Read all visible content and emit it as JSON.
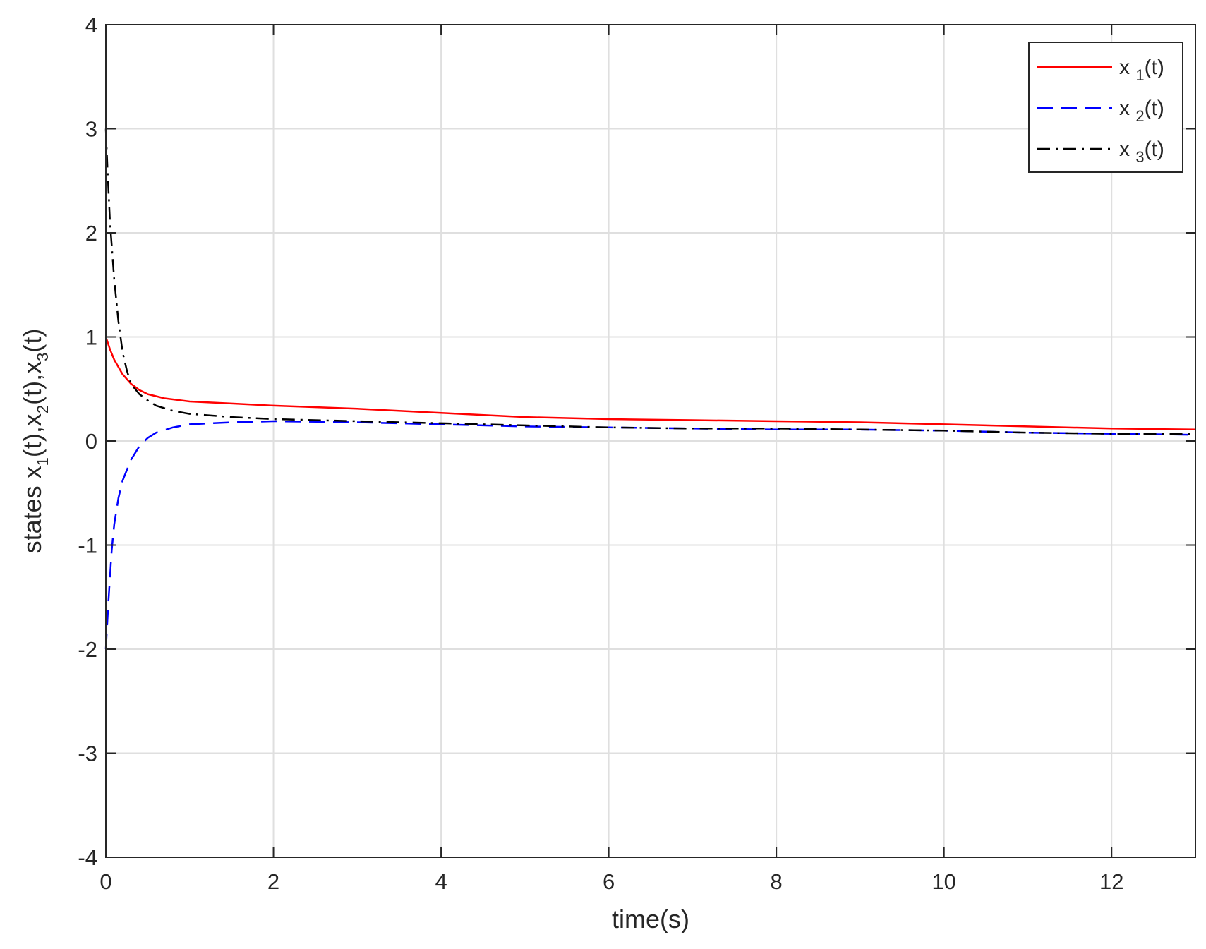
{
  "chart_data": {
    "type": "line",
    "title": "",
    "xlabel": "time(s)",
    "ylabel": {
      "parts": [
        "states x",
        "1",
        "(t),x",
        "2",
        "(t),x",
        "3",
        "(t)"
      ]
    },
    "xlim": [
      0,
      13
    ],
    "ylim": [
      -4,
      4
    ],
    "xticks": [
      0,
      2,
      4,
      6,
      8,
      10,
      12
    ],
    "yticks": [
      -4,
      -3,
      -2,
      -1,
      0,
      1,
      2,
      3,
      4
    ],
    "grid": true,
    "legend_position": "top-right",
    "series": [
      {
        "name": "x1(t)",
        "label_base": "x",
        "label_sub": "1",
        "label_tail": "(t)",
        "color": "#ff0000",
        "dash": "solid",
        "x": [
          0,
          0.05,
          0.1,
          0.2,
          0.3,
          0.4,
          0.5,
          0.7,
          1.0,
          1.5,
          2.0,
          3.0,
          4.0,
          5.0,
          6.0,
          7.0,
          8.0,
          9.0,
          10.0,
          11.0,
          12.0,
          13.0
        ],
        "y": [
          1.0,
          0.88,
          0.78,
          0.64,
          0.55,
          0.49,
          0.45,
          0.41,
          0.38,
          0.36,
          0.34,
          0.31,
          0.27,
          0.23,
          0.21,
          0.2,
          0.19,
          0.18,
          0.16,
          0.14,
          0.12,
          0.11
        ]
      },
      {
        "name": "x2(t)",
        "label_base": "x",
        "label_sub": "2",
        "label_tail": "(t)",
        "color": "#0000ff",
        "dash": "dashed",
        "x": [
          0,
          0.03,
          0.07,
          0.1,
          0.15,
          0.2,
          0.3,
          0.4,
          0.5,
          0.6,
          0.8,
          1.0,
          1.5,
          2.0,
          3.0,
          4.0,
          5.0,
          6.0,
          7.0,
          8.0,
          9.0,
          10.0,
          11.0,
          12.0,
          13.0
        ],
        "y": [
          -2.0,
          -1.55,
          -1.05,
          -0.8,
          -0.55,
          -0.38,
          -0.18,
          -0.05,
          0.03,
          0.08,
          0.13,
          0.16,
          0.18,
          0.19,
          0.18,
          0.16,
          0.14,
          0.13,
          0.12,
          0.11,
          0.11,
          0.1,
          0.08,
          0.07,
          0.06
        ]
      },
      {
        "name": "x3(t)",
        "label_base": "x",
        "label_sub": "3",
        "label_tail": "(t)",
        "color": "#000000",
        "dash": "dashdot",
        "x": [
          0,
          0.02,
          0.05,
          0.1,
          0.15,
          0.2,
          0.25,
          0.3,
          0.4,
          0.5,
          0.6,
          0.8,
          1.0,
          1.5,
          2.0,
          3.0,
          4.0,
          5.0,
          6.0,
          7.0,
          8.0,
          9.0,
          10.0,
          11.0,
          12.0,
          13.0
        ],
        "y": [
          3.0,
          2.6,
          2.1,
          1.55,
          1.15,
          0.85,
          0.68,
          0.55,
          0.45,
          0.39,
          0.34,
          0.29,
          0.26,
          0.23,
          0.21,
          0.19,
          0.17,
          0.15,
          0.13,
          0.12,
          0.12,
          0.11,
          0.1,
          0.08,
          0.07,
          0.07
        ]
      }
    ]
  }
}
